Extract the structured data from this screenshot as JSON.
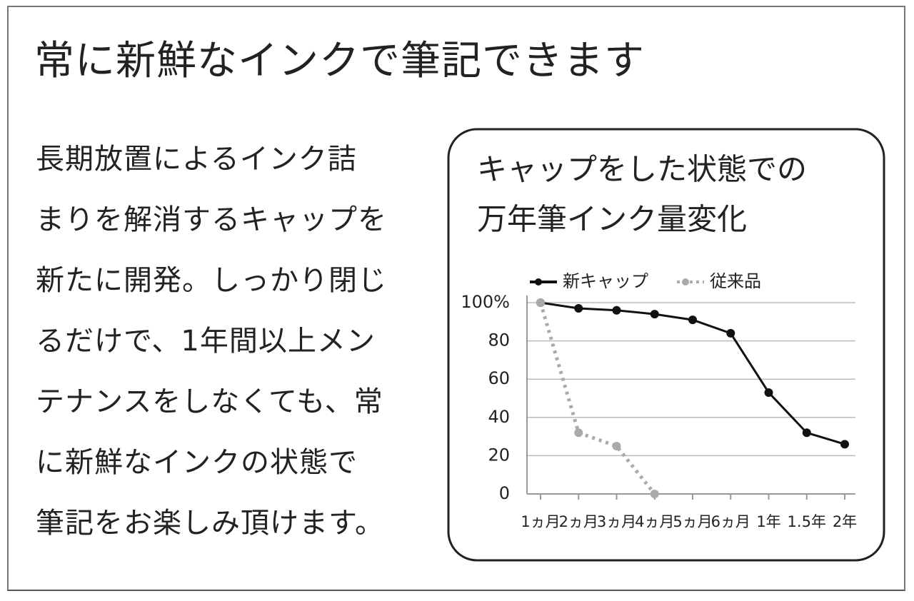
{
  "heading": "常に新鮮なインクで筆記できます",
  "body_lines": [
    "長期放置によるインク詰",
    "まりを解消するキャップを",
    "新たに開発。しっかり閉じ",
    "るだけで、1年間以上メン",
    "テナンスをしなくても、常",
    "に新鮮なインクの状態で",
    "筆記をお楽しみ頂けます。"
  ],
  "chart_data": {
    "type": "line",
    "title": [
      "キャップをした状態での",
      "万年筆インク量変化"
    ],
    "categories": [
      "1ヵ月",
      "2ヵ月",
      "3ヵ月",
      "4ヵ月",
      "5ヵ月",
      "6ヵ月",
      "1年",
      "1.5年",
      "2年"
    ],
    "series": [
      {
        "name": "新キャップ",
        "color": "#111111",
        "dash": false,
        "values": [
          100,
          97,
          96,
          94,
          91,
          84,
          53,
          32,
          26
        ]
      },
      {
        "name": "従来品",
        "color": "#aaaaaa",
        "dash": true,
        "values": [
          100,
          32,
          25,
          0,
          null,
          null,
          null,
          null,
          null
        ]
      }
    ],
    "ylim": [
      0,
      100
    ],
    "yticks": [
      0,
      20,
      40,
      60,
      80,
      {
        "value": 100,
        "label": "100%"
      }
    ],
    "grid": true
  }
}
